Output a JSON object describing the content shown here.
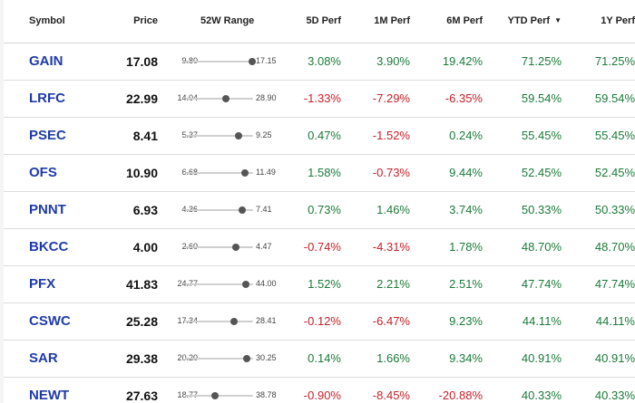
{
  "colors": {
    "positive": "#1b7a3a",
    "negative": "#c4222a",
    "symbol_link": "#1f3ba8"
  },
  "headers": {
    "symbol": "Symbol",
    "price": "Price",
    "range": "52W Range",
    "perf5d": "5D Perf",
    "perf1m": "1M Perf",
    "perf6m": "6M Perf",
    "ytd": "YTD Perf",
    "perf1y": "1Y Perf",
    "sort_icon": "caret-down-icon"
  },
  "rows": [
    {
      "symbol": "GAIN",
      "price": "17.08",
      "low": "9.80",
      "high": "17.15",
      "position": 0.99,
      "perf5d": "3.08%",
      "perf1m": "3.90%",
      "perf6m": "19.42%",
      "ytd": "71.25%",
      "perf1y": "71.25%"
    },
    {
      "symbol": "LRFC",
      "price": "22.99",
      "low": "14.04",
      "high": "28.90",
      "position": 0.6,
      "perf5d": "-1.33%",
      "perf1m": "-7.29%",
      "perf6m": "-6.35%",
      "ytd": "59.54%",
      "perf1y": "59.54%"
    },
    {
      "symbol": "PSEC",
      "price": "8.41",
      "low": "5.37",
      "high": "9.25",
      "position": 0.78,
      "perf5d": "0.47%",
      "perf1m": "-1.52%",
      "perf6m": "0.24%",
      "ytd": "55.45%",
      "perf1y": "55.45%"
    },
    {
      "symbol": "OFS",
      "price": "10.90",
      "low": "6.68",
      "high": "11.49",
      "position": 0.88,
      "perf5d": "1.58%",
      "perf1m": "-0.73%",
      "perf6m": "9.44%",
      "ytd": "52.45%",
      "perf1y": "52.45%"
    },
    {
      "symbol": "PNNT",
      "price": "6.93",
      "low": "4.36",
      "high": "7.41",
      "position": 0.84,
      "perf5d": "0.73%",
      "perf1m": "1.46%",
      "perf6m": "3.74%",
      "ytd": "50.33%",
      "perf1y": "50.33%"
    },
    {
      "symbol": "BKCC",
      "price": "4.00",
      "low": "2.60",
      "high": "4.47",
      "position": 0.75,
      "perf5d": "-0.74%",
      "perf1m": "-4.31%",
      "perf6m": "1.78%",
      "ytd": "48.70%",
      "perf1y": "48.70%"
    },
    {
      "symbol": "PFX",
      "price": "41.83",
      "low": "24.77",
      "high": "44.00",
      "position": 0.89,
      "perf5d": "1.52%",
      "perf1m": "2.21%",
      "perf6m": "2.51%",
      "ytd": "47.74%",
      "perf1y": "47.74%"
    },
    {
      "symbol": "CSWC",
      "price": "25.28",
      "low": "17.34",
      "high": "28.41",
      "position": 0.72,
      "perf5d": "-0.12%",
      "perf1m": "-6.47%",
      "perf6m": "9.23%",
      "ytd": "44.11%",
      "perf1y": "44.11%"
    },
    {
      "symbol": "SAR",
      "price": "29.38",
      "low": "20.20",
      "high": "30.25",
      "position": 0.91,
      "perf5d": "0.14%",
      "perf1m": "1.66%",
      "perf6m": "9.34%",
      "ytd": "40.91%",
      "perf1y": "40.91%"
    },
    {
      "symbol": "NEWT",
      "price": "27.63",
      "low": "18.77",
      "high": "38.78",
      "position": 0.44,
      "perf5d": "-0.90%",
      "perf1m": "-8.45%",
      "perf6m": "-20.88%",
      "ytd": "40.33%",
      "perf1y": "40.33%"
    }
  ]
}
